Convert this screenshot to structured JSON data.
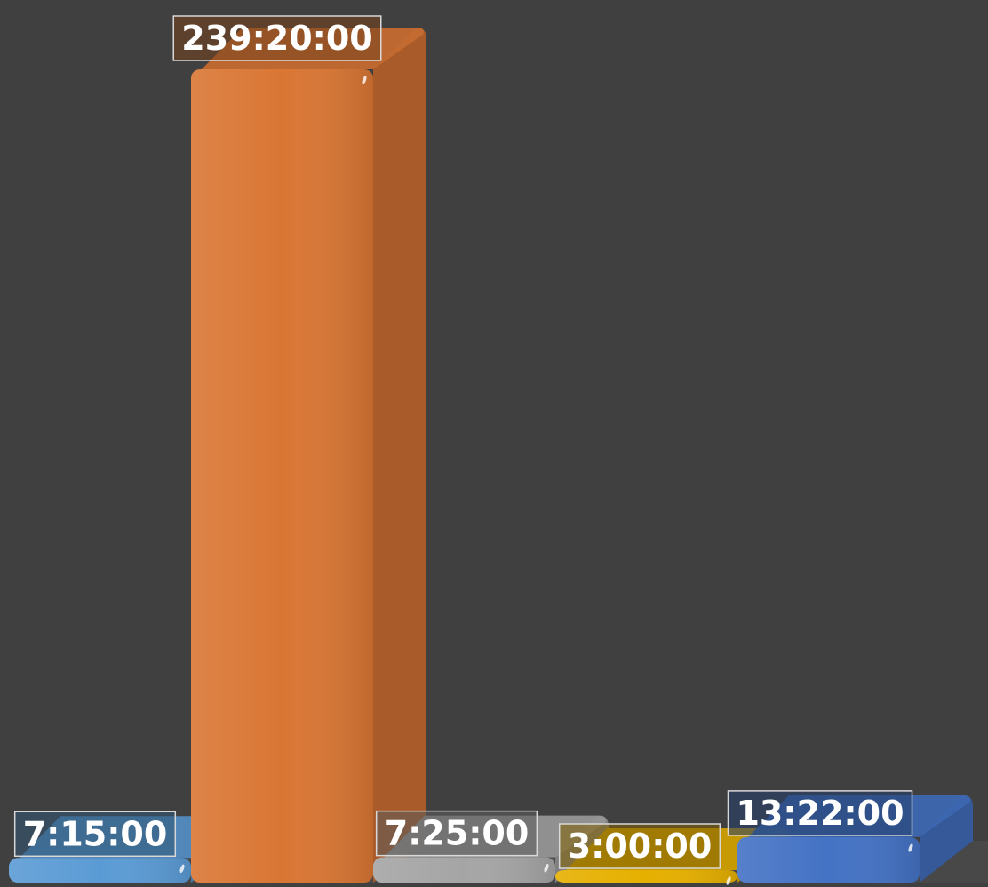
{
  "chart_data": {
    "type": "bar",
    "style": "3d-column",
    "title": "",
    "xlabel": "",
    "ylabel": "",
    "value_unit": "hours",
    "ylim": [
      0,
      250
    ],
    "grid": false,
    "legend": "none",
    "background_color": "#404040",
    "series": [
      {
        "values": [
          7.25,
          239.3333,
          7.4167,
          3.0,
          13.3667
        ],
        "labels": [
          "7:15:00",
          "239:20:00",
          "7:25:00",
          "3:00:00",
          "13:22:00"
        ],
        "colors": [
          "#5b9bd5",
          "#d97634",
          "#a5a5a5",
          "#e6b000",
          "#4472c4"
        ]
      }
    ]
  }
}
